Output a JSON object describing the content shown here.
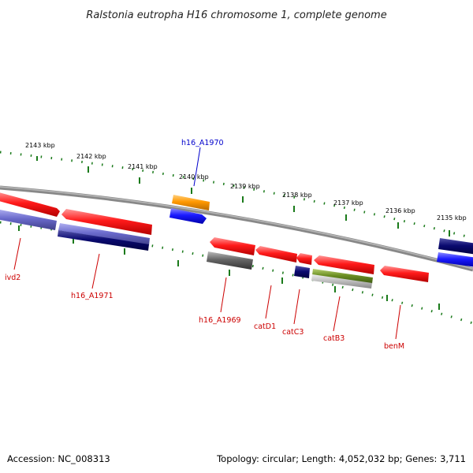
{
  "title": "Ralstonia eutropha H16 chromosome 1, complete genome",
  "footer": {
    "accession": "Accession: NC_008313",
    "summary": "Topology: circular; Length: 4,052,032 bp; Genes: 3,711"
  },
  "ticks": [
    {
      "label": "2143 kbp"
    },
    {
      "label": "2142 kbp"
    },
    {
      "label": "2141 kbp"
    },
    {
      "label": "2140 kbp"
    },
    {
      "label": "2139 kbp"
    },
    {
      "label": "2138 kbp"
    },
    {
      "label": "2137 kbp"
    },
    {
      "label": "2136 kbp"
    },
    {
      "label": "2135 kbp"
    }
  ],
  "gene_labels": [
    {
      "text": "h16_A1970",
      "color": "#0000cc"
    },
    {
      "text": "ivd2",
      "color": "#cc0000"
    },
    {
      "text": "h16_A1971",
      "color": "#cc0000"
    },
    {
      "text": "h16_A1969",
      "color": "#cc0000"
    },
    {
      "text": "catD1",
      "color": "#cc0000"
    },
    {
      "text": "catC3",
      "color": "#cc0000"
    },
    {
      "text": "catB3",
      "color": "#cc0000"
    },
    {
      "text": "benM",
      "color": "#cc0000"
    }
  ],
  "colors": {
    "backbone": "#7a7a7a",
    "tick": "#1a7a1a",
    "red_gene": "#ee1111",
    "blue_gene": "#1111ee",
    "navy_gene": "#0a0a66",
    "lavender_gene": "#6a6acc",
    "orange_gene": "#ff9900",
    "grey_gene": "#666666",
    "olive_gene": "#6b8e23"
  }
}
